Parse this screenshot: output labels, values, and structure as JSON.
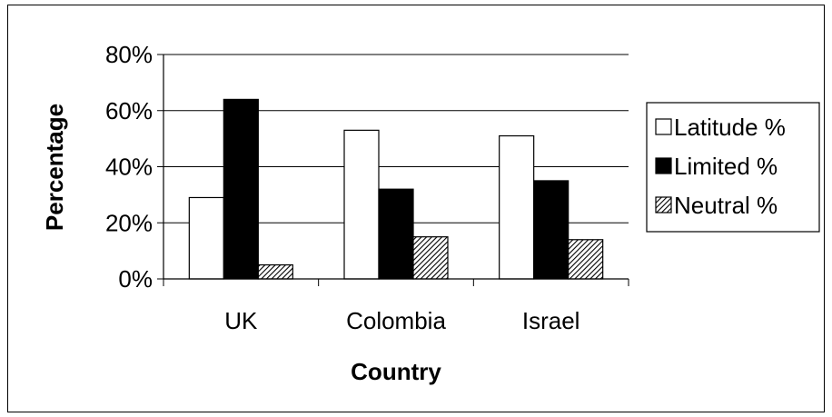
{
  "chart_data": {
    "type": "bar",
    "categories": [
      "UK",
      "Colombia",
      "Israel"
    ],
    "series": [
      {
        "name": "Latitude %",
        "values": [
          29,
          53,
          51
        ],
        "color": "#ffffff",
        "pattern": "none"
      },
      {
        "name": "Limited %",
        "values": [
          64,
          32,
          35
        ],
        "color": "#000000",
        "pattern": "none"
      },
      {
        "name": "Neutral %",
        "values": [
          5,
          15,
          14
        ],
        "color": "#ffffff",
        "pattern": "diagonal-hatch"
      }
    ],
    "title": "",
    "xlabel": "Country",
    "ylabel": "Percentage",
    "ylim": [
      0,
      80
    ],
    "yticks": [
      0,
      20,
      40,
      60,
      80
    ],
    "ytick_labels": [
      "0%",
      "20%",
      "40%",
      "60%",
      "80%"
    ],
    "grid": true,
    "legend_position": "right"
  }
}
